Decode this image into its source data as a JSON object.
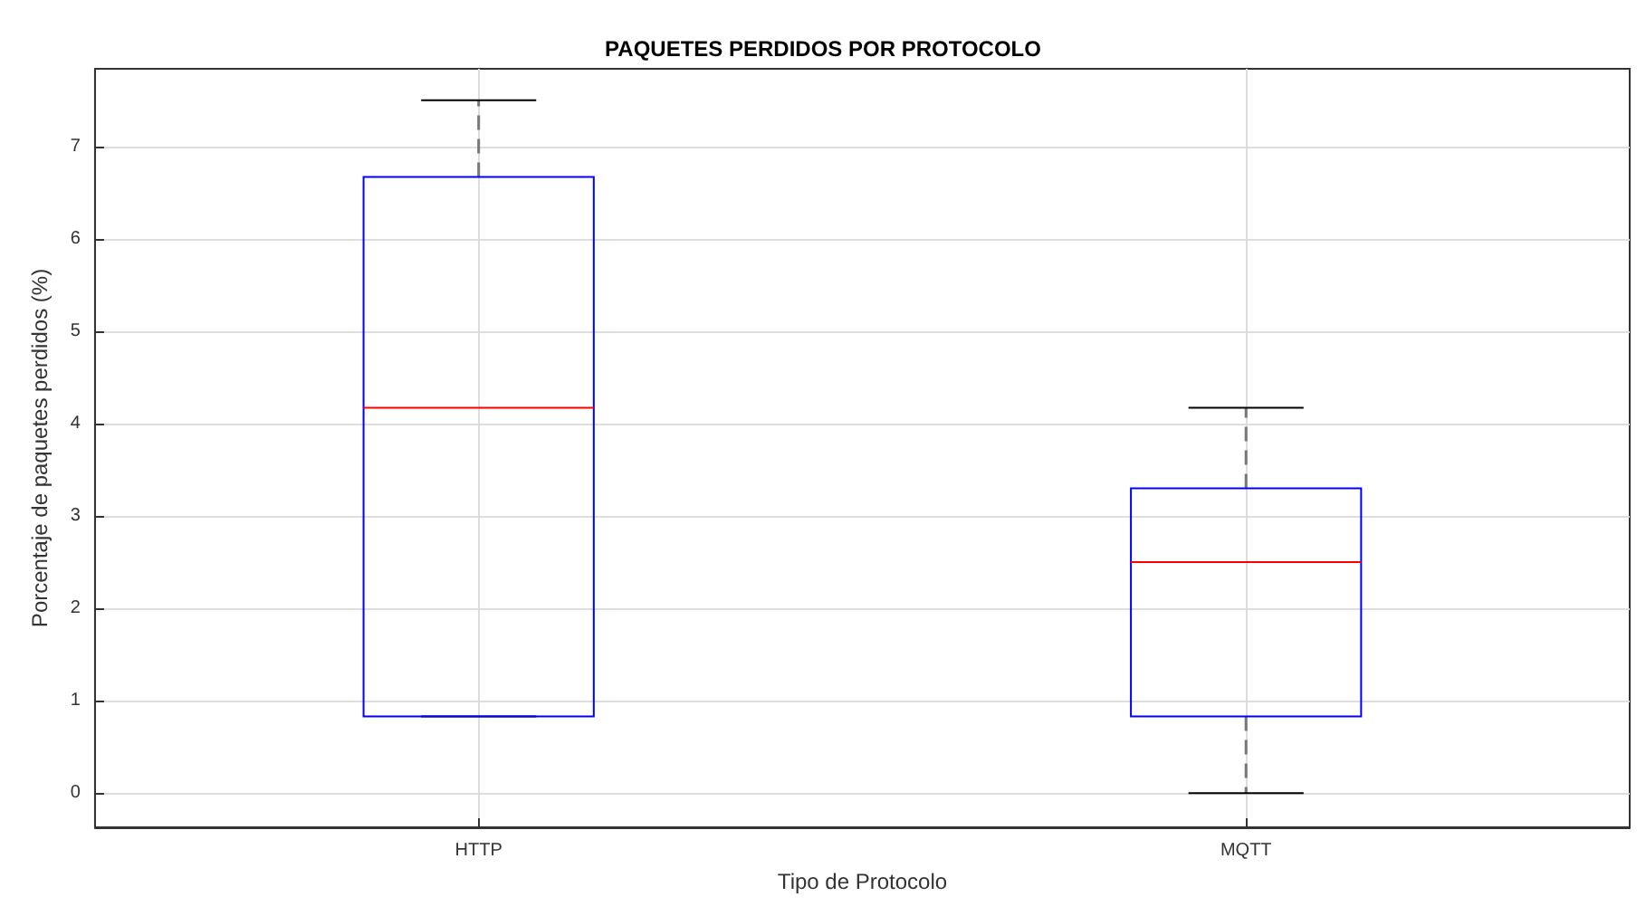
{
  "chart_data": {
    "type": "box",
    "title": "PAQUETES PERDIDOS POR PROTOCOLO",
    "xlabel": "Tipo de Protocolo",
    "ylabel": "Porcentaje de paquetes perdidos (%)",
    "categories": [
      "HTTP",
      "MQTT"
    ],
    "series": [
      {
        "color": "#0000ff",
        "boxes": [
          {
            "low": 0.83,
            "q1": 0.83,
            "median": 4.17,
            "q3": 6.67,
            "high": 7.5
          },
          {
            "low": 0,
            "q1": 0.83,
            "median": 2.5,
            "q3": 3.3,
            "high": 4.17
          }
        ]
      }
    ],
    "ylim": [
      -0.37,
      7.84
    ],
    "yticks": [
      0,
      1,
      2,
      3,
      4,
      5,
      6,
      7
    ],
    "grid": true
  }
}
